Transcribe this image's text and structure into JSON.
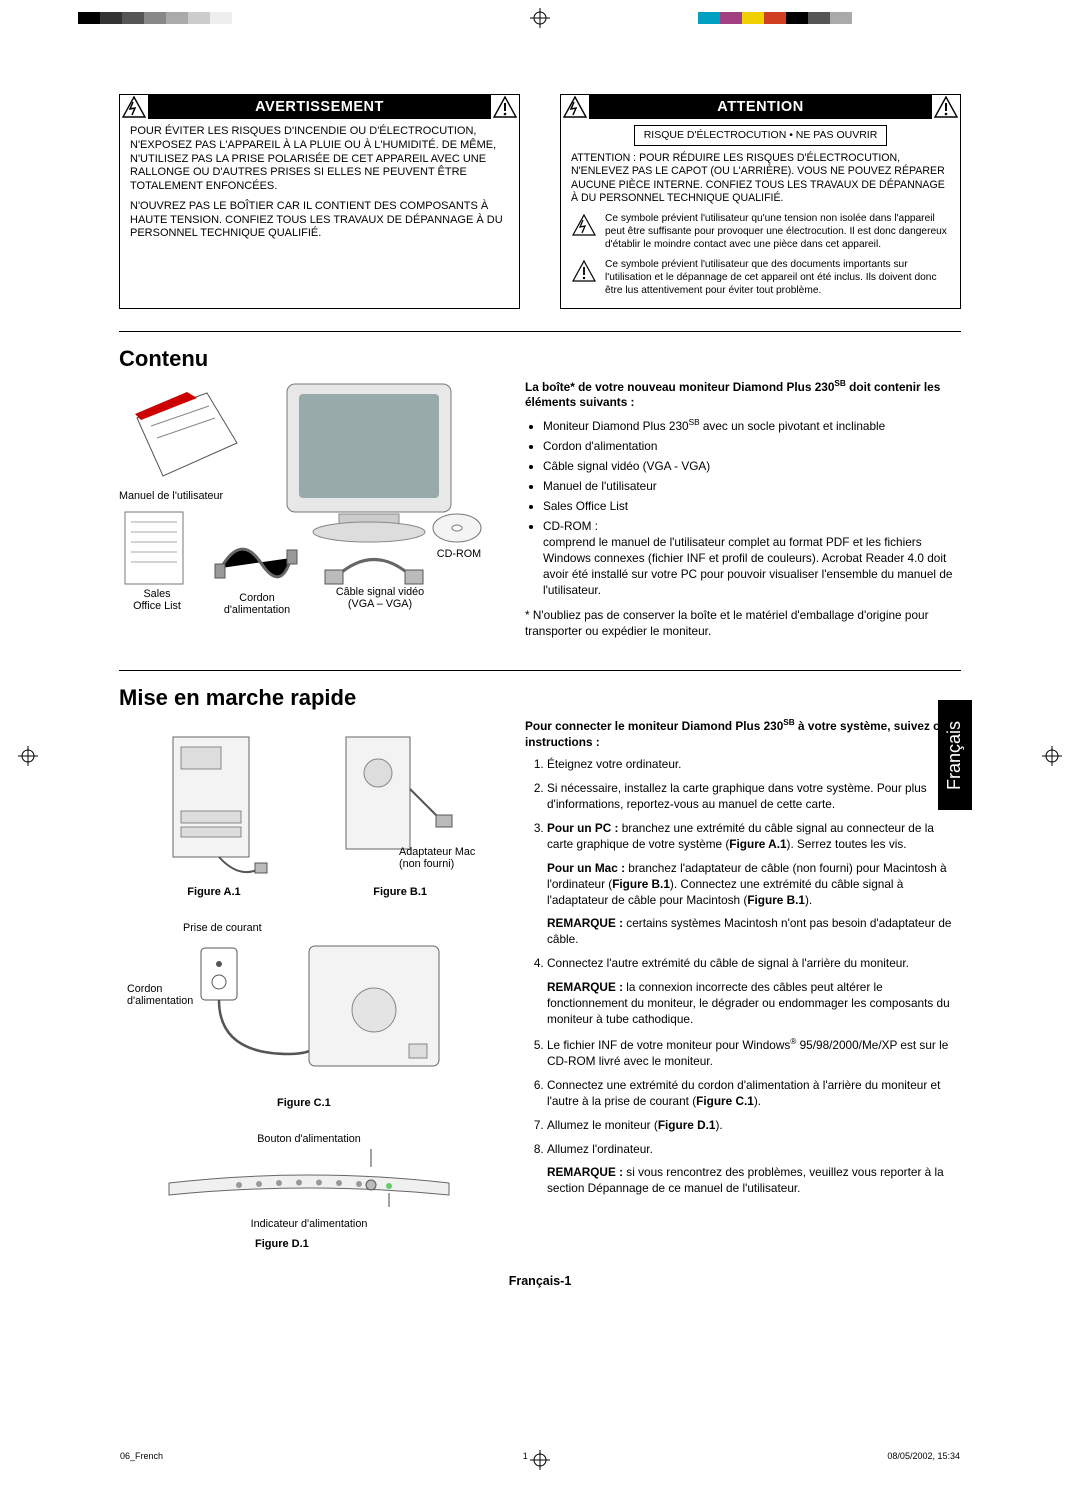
{
  "marks": {
    "swatch_colors": [
      "#000000",
      "#333333",
      "#555555",
      "#888888",
      "#aaaaaa",
      "#cccccc",
      "#eeeeee"
    ],
    "right_swatch_colors": [
      "#00a0c0",
      "#a04080",
      "#f0d000",
      "#d04020",
      "#000000",
      "#555555",
      "#aaaaaa"
    ]
  },
  "avertissement": {
    "title": "AVERTISSEMENT",
    "p1": "POUR ÉVITER LES RISQUES D'INCENDIE OU D'ÉLECTROCUTION, N'EXPOSEZ PAS L'APPAREIL À LA PLUIE OU À L'HUMIDITÉ. DE MÊME, N'UTILISEZ PAS LA PRISE POLARISÉE DE CET APPAREIL AVEC UNE RALLONGE OU D'AUTRES PRISES SI ELLES NE PEUVENT ÊTRE TOTALEMENT ENFONCÉES.",
    "p2": "N'OUVREZ PAS LE BOÎTIER CAR IL CONTIENT DES COMPOSANTS À HAUTE TENSION. CONFIEZ TOUS LES TRAVAUX DE DÉPANNAGE À DU PERSONNEL TECHNIQUE QUALIFIÉ."
  },
  "attention": {
    "title": "ATTENTION",
    "small_box": "RISQUE D'ÉLECTROCUTION • NE PAS OUVRIR",
    "p1": "ATTENTION : POUR RÉDUIRE LES RISQUES D'ÉLECTROCUTION, N'ENLEVEZ PAS LE CAPOT (OU L'ARRIÈRE). VOUS NE POUVEZ RÉPARER AUCUNE PIÈCE INTERNE. CONFIEZ TOUS LES TRAVAUX DE DÉPANNAGE À DU PERSONNEL TECHNIQUE QUALIFIÉ.",
    "sym1": "Ce symbole prévient l'utilisateur qu'une tension non isolée dans l'appareil peut être suffisante pour provoquer une électrocution. Il est donc dangereux d'établir le moindre contact avec une pièce dans cet appareil.",
    "sym2": "Ce symbole prévient l'utilisateur que des documents importants sur l'utilisation et le dépannage de cet appareil ont été inclus. Ils doivent donc être lus attentivement pour éviter tout problème."
  },
  "contenu": {
    "title": "Contenu",
    "intro_a": "La boîte* de votre nouveau moniteur Diamond Plus 230",
    "intro_sup": "SB",
    "intro_b": " doit contenir les éléments suivants :",
    "items": {
      "i1a": "Moniteur Diamond Plus 230",
      "i1sup": "SB",
      "i1b": " avec un socle pivotant et inclinable",
      "i2": "Cordon d'alimentation",
      "i3": "Câble signal vidéo (VGA - VGA)",
      "i4": "Manuel de l'utilisateur",
      "i5": "Sales Office List",
      "i6": "CD-ROM :",
      "i6_desc": "comprend le manuel de l'utilisateur complet au format PDF et les fichiers Windows connexes (fichier INF et profil de couleurs). Acrobat Reader 4.0 doit avoir été installé sur votre PC pour pouvoir visualiser l'ensemble du manuel de l'utilisateur."
    },
    "note": "*   N'oubliez pas de conserver la boîte et le matériel d'emballage d'origine pour transporter ou expédier le moniteur.",
    "captions": {
      "manual": "Manuel de l'utilisateur",
      "sales": "Sales\nOffice List",
      "cord": "Cordon\nd'alimentation",
      "cable": "Câble signal vidéo\n(VGA – VGA)",
      "cdrom": "CD-ROM"
    }
  },
  "mise": {
    "title": "Mise en marche rapide",
    "intro_a": "Pour connecter le moniteur Diamond Plus 230",
    "intro_sup": "SB",
    "intro_b": " à votre système, suivez ces instructions :",
    "steps": {
      "s1": "Éteignez votre ordinateur.",
      "s2": "Si nécessaire, installez la carte graphique dans votre système. Pour plus d'informations, reportez-vous au manuel de cette carte.",
      "s3_lead": "Pour un PC :",
      "s3_rest": " branchez une extrémité du câble signal au connecteur de la carte graphique de votre système (",
      "s3_fig": "Figure A.1",
      "s3_end": "). Serrez toutes les vis.",
      "s3_mac_lead": "Pour un Mac :",
      "s3_mac_rest": " branchez l'adaptateur de câble (non fourni) pour Macintosh à l'ordinateur (",
      "s3_mac_fig1": "Figure B.1",
      "s3_mac_mid": "). Connectez une extrémité du câble signal à l'adaptateur de câble pour Macintosh (",
      "s3_mac_fig2": "Figure B.1",
      "s3_mac_end": ").",
      "s3_rem_lead": "REMARQUE :",
      "s3_rem": " certains systèmes Macintosh n'ont pas besoin d'adaptateur de câble.",
      "s4": "Connectez l'autre extrémité du câble de signal à l'arrière du moniteur.",
      "s4_rem_lead": "REMARQUE :",
      "s4_rem": " la connexion incorrecte des câbles peut altérer le fonctionnement du moniteur, le dégrader ou endommager les composants du moniteur à tube cathodique.",
      "s5_a": "Le fichier INF de votre moniteur pour Windows",
      "s5_sup": "®",
      "s5_b": " 95/98/2000/Me/XP est sur le CD-ROM livré avec le moniteur.",
      "s6_a": "Connectez une extrémité du cordon d'alimentation à l'arrière du moniteur et l'autre à la prise de courant (",
      "s6_fig": "Figure C.1",
      "s6_b": ").",
      "s7_a": "Allumez le moniteur (",
      "s7_fig": "Figure D.1",
      "s7_b": ").",
      "s8": "Allumez l'ordinateur.",
      "s8_rem_lead": "REMARQUE :",
      "s8_rem": " si vous rencontrez des problèmes, veuillez vous reporter à la section Dépannage de ce manuel de l'utilisateur."
    },
    "fig_labels": {
      "a1": "Figure A.1",
      "b1": "Figure B.1",
      "c1": "Figure C.1",
      "d1": "Figure D.1",
      "mac_adapter": "Adaptateur Mac\n(non fourni)",
      "outlet": "Prise de courant",
      "cord": "Cordon\nd'alimentation",
      "power_btn": "Bouton d'alimentation",
      "power_led": "Indicateur d'alimentation"
    }
  },
  "lang_tab": "Français",
  "page_number": "Français-1",
  "footer": {
    "left": "06_French",
    "mid": "1",
    "right": "08/05/2002, 15:34"
  }
}
